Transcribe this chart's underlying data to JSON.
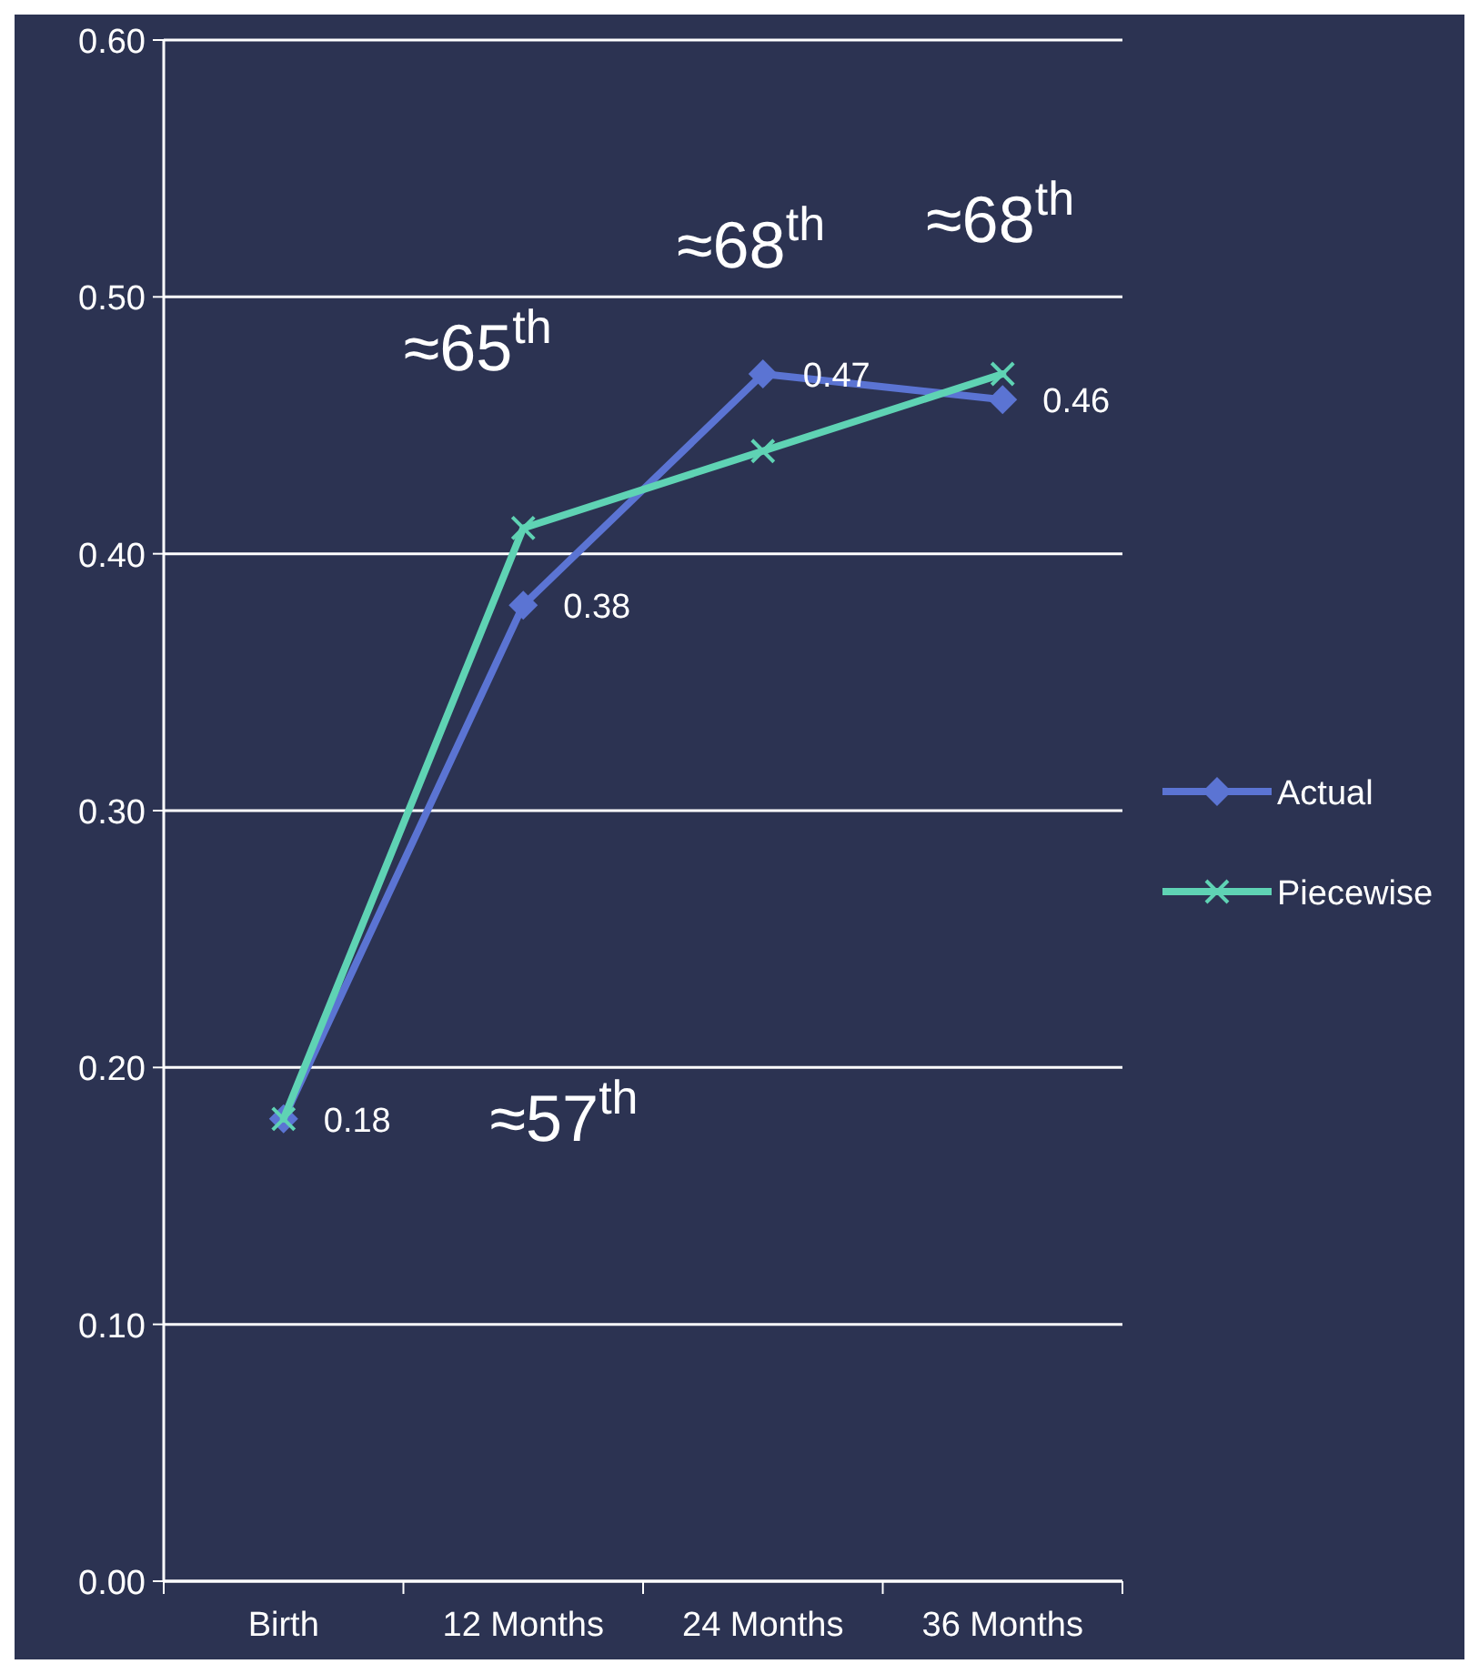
{
  "chart_data": {
    "type": "line",
    "categories": [
      "Birth",
      "12 Months",
      "24 Months",
      "36 Months"
    ],
    "series": [
      {
        "name": "Actual",
        "color": "#5b74d3",
        "marker": "diamond",
        "values": [
          0.18,
          0.38,
          0.47,
          0.46
        ],
        "value_labels": [
          "0.18",
          "0.38",
          "0.47",
          "0.46"
        ]
      },
      {
        "name": "Piecewise",
        "color": "#5fd3b4",
        "marker": "cross",
        "values": [
          0.18,
          0.41,
          0.44,
          0.47
        ]
      }
    ],
    "ylim": [
      0,
      0.6
    ],
    "yticks": [
      {
        "value": 0,
        "label": "0.00"
      },
      {
        "value": 0.1,
        "label": "0.10"
      },
      {
        "value": 0.2,
        "label": "0.20"
      },
      {
        "value": 0.3,
        "label": "0.30"
      },
      {
        "value": 0.4,
        "label": "0.40"
      },
      {
        "value": 0.5,
        "label": "0.50"
      },
      {
        "value": 0.6,
        "label": "0.60"
      }
    ],
    "grid": "y",
    "legend": "right",
    "annotations": [
      "≈57$^{th}$",
      "≈65$^{th}$",
      "≈68$^{th}$",
      "≈68$^{th}$"
    ]
  }
}
